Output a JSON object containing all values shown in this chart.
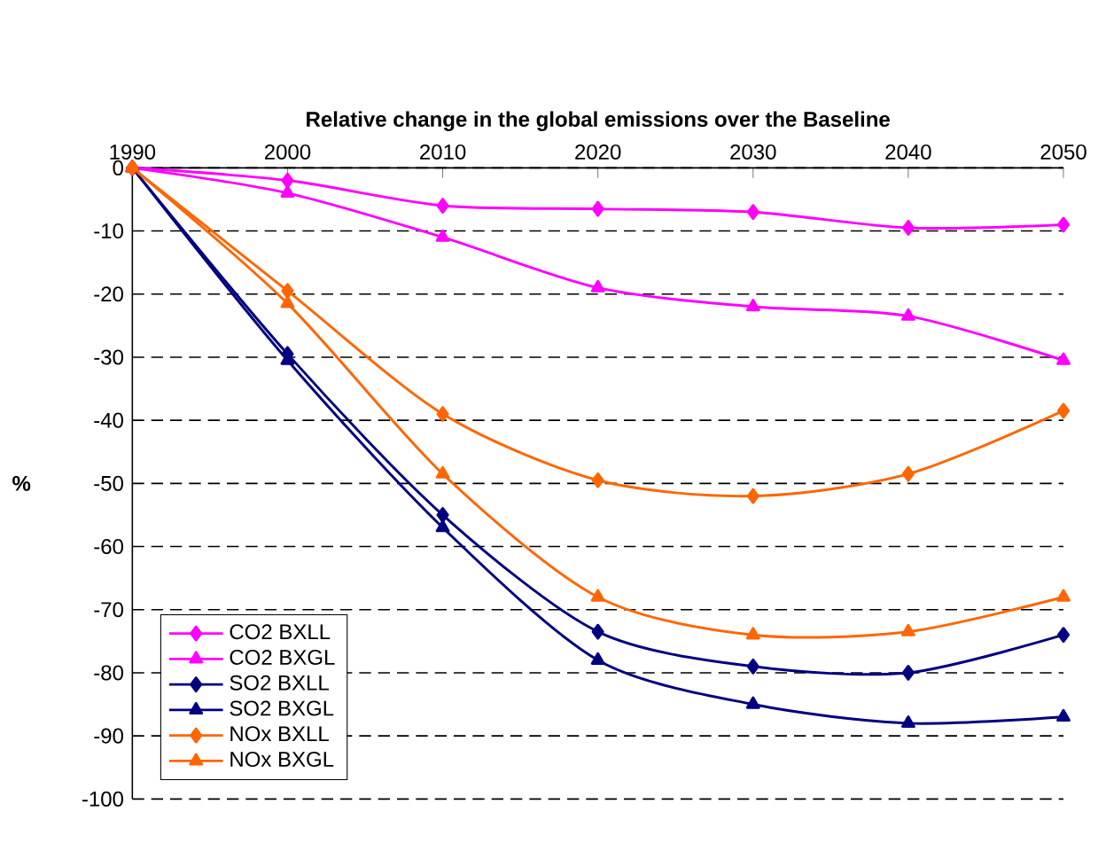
{
  "chart_data": {
    "type": "line",
    "title": "Relative change in the global emissions over the Baseline",
    "ylabel": "%",
    "x": [
      1990,
      2000,
      2010,
      2020,
      2030,
      2040,
      2050
    ],
    "xlim": [
      1990,
      2050
    ],
    "xticks": [
      1990,
      2000,
      2010,
      2020,
      2030,
      2040,
      2050
    ],
    "ylim": [
      -100,
      0
    ],
    "yticks": [
      -100,
      -90,
      -80,
      -70,
      -60,
      -50,
      -40,
      -30,
      -20,
      -10,
      0
    ],
    "grid": "y",
    "legend": "bottom left",
    "line_style": "solid",
    "series": [
      {
        "name": "CO2 BXLL",
        "color": "#ff00ff",
        "marker": "diamond",
        "values": [
          0,
          -2,
          -6,
          -6.5,
          -7,
          -9.5,
          -9
        ]
      },
      {
        "name": "CO2 BXGL",
        "color": "#ff00ff",
        "marker": "triangle",
        "values": [
          0,
          -4,
          -11,
          -19,
          -22,
          -23.5,
          -30.5
        ]
      },
      {
        "name": "SO2 BXLL",
        "color": "#000080",
        "marker": "diamond",
        "values": [
          0,
          -29.5,
          -55,
          -73.5,
          -79,
          -80,
          -74
        ]
      },
      {
        "name": "SO2 BXGL",
        "color": "#000080",
        "marker": "triangle",
        "values": [
          0,
          -30.5,
          -57,
          -78,
          -85,
          -88,
          -87
        ]
      },
      {
        "name": "NOx BXLL",
        "color": "#ff6600",
        "marker": "diamond",
        "values": [
          0,
          -19.5,
          -39,
          -49.5,
          -52,
          -48.5,
          -38.5
        ]
      },
      {
        "name": "NOx BXGL",
        "color": "#ff6600",
        "marker": "triangle",
        "values": [
          0,
          -21.5,
          -48.5,
          -68,
          -74,
          -73.5,
          -68
        ]
      }
    ]
  }
}
